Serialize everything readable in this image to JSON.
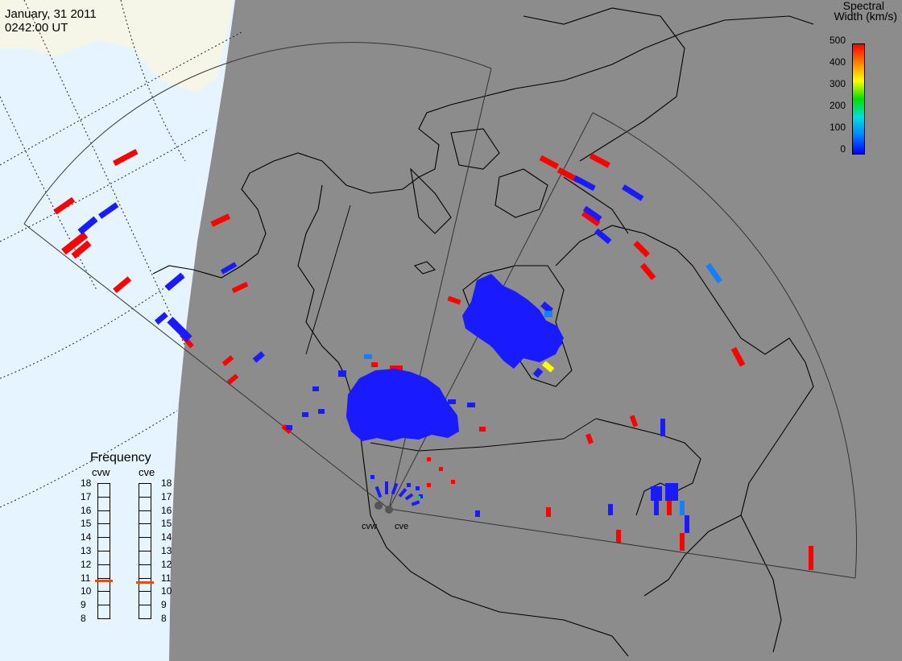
{
  "header": {
    "date": "January, 31 2011",
    "time": "0242:00 UT"
  },
  "colorbar": {
    "title_line1": "Spectral",
    "title_line2": "Width (km/s)",
    "ticks": [
      "500",
      "400",
      "300",
      "200",
      "100",
      "0"
    ],
    "gradient": [
      "#ff0000",
      "#ff8000",
      "#ffff00",
      "#00e000",
      "#00e0e0",
      "#0080ff",
      "#0000ff"
    ]
  },
  "frequency": {
    "title": "Frequency",
    "radars": [
      "cvw",
      "cve"
    ],
    "levels": [
      "18",
      "17",
      "16",
      "15",
      "14",
      "13",
      "12",
      "11",
      "10",
      "9",
      "8"
    ],
    "cvw_value_mhz": 10.8,
    "cve_value_mhz": 10.7,
    "marker_color": "#e05010"
  },
  "sites": {
    "west": "cvw",
    "east": "cve"
  },
  "colors": {
    "night_side": "#8c8c8c",
    "ocean_day": "#e6f4ff",
    "land_day": "#f5f5e8",
    "coast": "#000000",
    "fov": "#333333"
  }
}
